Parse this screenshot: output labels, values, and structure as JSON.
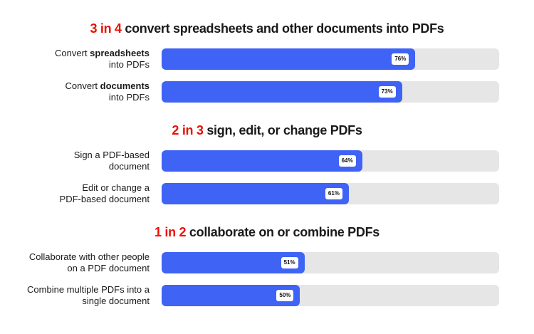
{
  "chart_data": {
    "type": "bar",
    "orientation": "horizontal",
    "colors": {
      "bar": "#3e63f5",
      "track": "#e6e6e6",
      "highlight": "#eb1000"
    },
    "groups": [
      {
        "title_highlight": "3 in 4",
        "title_rest": " convert spreadsheets and other documents into PDFs",
        "items": [
          {
            "pre": "Convert ",
            "bold": "spreadsheets",
            "post": "into PDFs",
            "value": 76,
            "value_label": "76%"
          },
          {
            "pre": "Convert ",
            "bold": "documents",
            "post": "into PDFs",
            "value": 73,
            "value_label": "73%"
          }
        ]
      },
      {
        "title_highlight": "2 in 3",
        "title_rest": " sign, edit, or change PDFs",
        "items": [
          {
            "pre": "Sign a PDF-based",
            "bold": "",
            "post": "document",
            "value": 64,
            "value_label": "64%"
          },
          {
            "pre": "Edit or change a",
            "bold": "",
            "post": "PDF-based document",
            "value": 61,
            "value_label": "61%"
          }
        ]
      },
      {
        "title_highlight": "1 in 2",
        "title_rest": " collaborate on or combine PDFs",
        "items": [
          {
            "pre": "Collaborate with other people",
            "bold": "",
            "post": "on a PDF document",
            "value": 51,
            "value_label": "51%"
          },
          {
            "pre": "Combine multiple PDFs into a",
            "bold": "",
            "post": "single document",
            "value": 50,
            "value_label": "50%"
          }
        ]
      }
    ]
  }
}
